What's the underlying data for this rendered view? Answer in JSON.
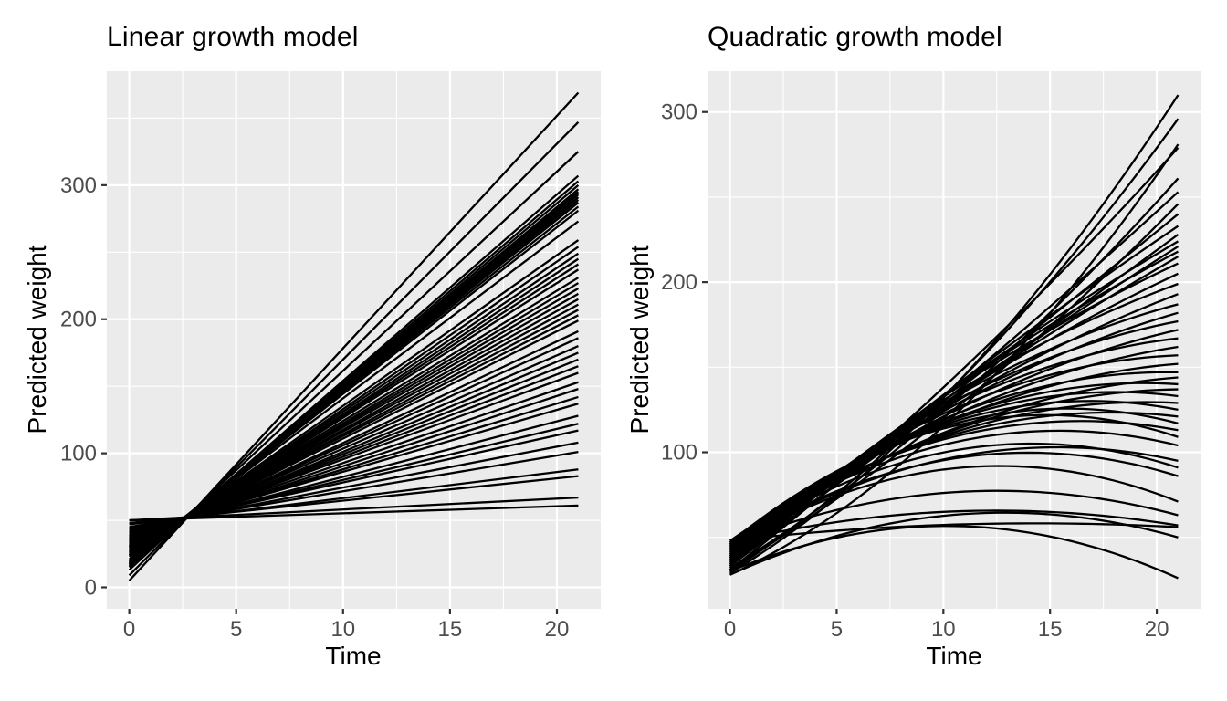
{
  "figure": {
    "background": "#FFFFFF",
    "panel_background": "#EBEBEB",
    "gridline_color": "#FFFFFF",
    "line_color": "#000000",
    "axis_text_color": "#4D4D4D",
    "tick_mark_color": "#333333"
  },
  "chart_data": [
    {
      "type": "line",
      "title": "Linear growth model",
      "xlabel": "Time",
      "ylabel": "Predicted weight",
      "xlim": [
        -1.05,
        22.05
      ],
      "ylim": [
        -16,
        385
      ],
      "x_major_ticks": [
        0,
        5,
        10,
        15,
        20
      ],
      "x_minor_ticks": [
        2.5,
        7.5,
        12.5,
        17.5
      ],
      "y_major_ticks": [
        0,
        100,
        200,
        300
      ],
      "y_minor_ticks": [
        50,
        150,
        250,
        350
      ],
      "time_range": [
        0,
        21
      ],
      "grid": true,
      "legend": "none",
      "lines_note": "each entry = [predicted weight at time 0, predicted weight at time 21], straight line",
      "lines": [
        [
          5,
          369
        ],
        [
          9,
          347
        ],
        [
          13,
          325
        ],
        [
          15,
          307
        ],
        [
          16,
          303
        ],
        [
          16,
          300
        ],
        [
          17,
          297
        ],
        [
          17,
          295
        ],
        [
          18,
          293
        ],
        [
          18,
          291
        ],
        [
          19,
          289
        ],
        [
          19,
          287
        ],
        [
          20,
          284
        ],
        [
          20,
          281
        ],
        [
          21,
          273
        ],
        [
          23,
          259
        ],
        [
          23,
          254
        ],
        [
          24,
          249
        ],
        [
          24,
          245
        ],
        [
          25,
          241
        ],
        [
          26,
          237
        ],
        [
          27,
          231
        ],
        [
          27,
          227
        ],
        [
          28,
          223
        ],
        [
          29,
          219
        ],
        [
          29,
          215
        ],
        [
          30,
          211
        ],
        [
          30,
          207
        ],
        [
          31,
          203
        ],
        [
          31,
          199
        ],
        [
          32,
          191
        ],
        [
          33,
          186
        ],
        [
          34,
          180
        ],
        [
          34,
          175
        ],
        [
          35,
          170
        ],
        [
          36,
          165
        ],
        [
          37,
          160
        ],
        [
          38,
          153
        ],
        [
          38,
          148
        ],
        [
          39,
          142
        ],
        [
          40,
          137
        ],
        [
          41,
          128
        ],
        [
          42,
          122
        ],
        [
          43,
          117
        ],
        [
          44,
          108
        ],
        [
          45,
          101
        ],
        [
          47,
          88
        ],
        [
          48,
          83
        ],
        [
          50,
          67
        ],
        [
          50,
          61
        ]
      ]
    },
    {
      "type": "line",
      "title": "Quadratic growth model",
      "xlabel": "Time",
      "ylabel": "Predicted weight",
      "xlim": [
        -1.05,
        22.05
      ],
      "ylim": [
        8,
        324
      ],
      "x_major_ticks": [
        0,
        5,
        10,
        15,
        20
      ],
      "x_minor_ticks": [
        2.5,
        7.5,
        12.5,
        17.5
      ],
      "y_major_ticks": [
        100,
        200,
        300
      ],
      "y_minor_ticks": [
        50,
        150,
        250
      ],
      "time_range": [
        0,
        21
      ],
      "grid": true,
      "legend": "none",
      "curves_note": "each entry = [weight at time 0, weight at time 21, quadratic curvature c]; w(t)=w0+b*t+c*t^2 with b solved from endpoints",
      "curves": [
        [
          29,
          310,
          0.28
        ],
        [
          30,
          296,
          0.22
        ],
        [
          28,
          281,
          0.3
        ],
        [
          31,
          279,
          0.1
        ],
        [
          32,
          261,
          0.15
        ],
        [
          33,
          253,
          0.05
        ],
        [
          31,
          246,
          0.12
        ],
        [
          34,
          240,
          0.02
        ],
        [
          33,
          233,
          -0.05
        ],
        [
          35,
          228,
          0.0
        ],
        [
          34,
          224,
          -0.08
        ],
        [
          36,
          221,
          -0.04
        ],
        [
          35,
          218,
          -0.1
        ],
        [
          37,
          215,
          -0.06
        ],
        [
          36,
          211,
          -0.12
        ],
        [
          38,
          205,
          -0.1
        ],
        [
          37,
          199,
          -0.15
        ],
        [
          39,
          193,
          -0.12
        ],
        [
          38,
          187,
          -0.18
        ],
        [
          40,
          182,
          -0.15
        ],
        [
          39,
          177,
          -0.2
        ],
        [
          41,
          172,
          -0.16
        ],
        [
          40,
          167,
          -0.22
        ],
        [
          42,
          162,
          -0.18
        ],
        [
          41,
          157,
          -0.24
        ],
        [
          43,
          152,
          -0.2
        ],
        [
          42,
          147,
          -0.25
        ],
        [
          44,
          144,
          -0.18
        ],
        [
          43,
          140,
          -0.26
        ],
        [
          45,
          137,
          -0.2
        ],
        [
          44,
          133,
          -0.28
        ],
        [
          46,
          129,
          -0.22
        ],
        [
          45,
          125,
          -0.3
        ],
        [
          47,
          121,
          -0.24
        ],
        [
          46,
          117,
          -0.32
        ],
        [
          48,
          113,
          -0.26
        ],
        [
          47,
          109,
          -0.34
        ],
        [
          46,
          104,
          -0.28
        ],
        [
          44,
          95,
          -0.25
        ],
        [
          45,
          91,
          -0.3
        ],
        [
          45,
          86,
          -0.28
        ],
        [
          44,
          71,
          -0.3
        ],
        [
          46,
          63,
          -0.2
        ],
        [
          47,
          57,
          -0.12
        ],
        [
          48,
          56,
          -0.05
        ],
        [
          28,
          50,
          -0.22
        ],
        [
          30,
          26,
          -0.26
        ]
      ]
    }
  ]
}
